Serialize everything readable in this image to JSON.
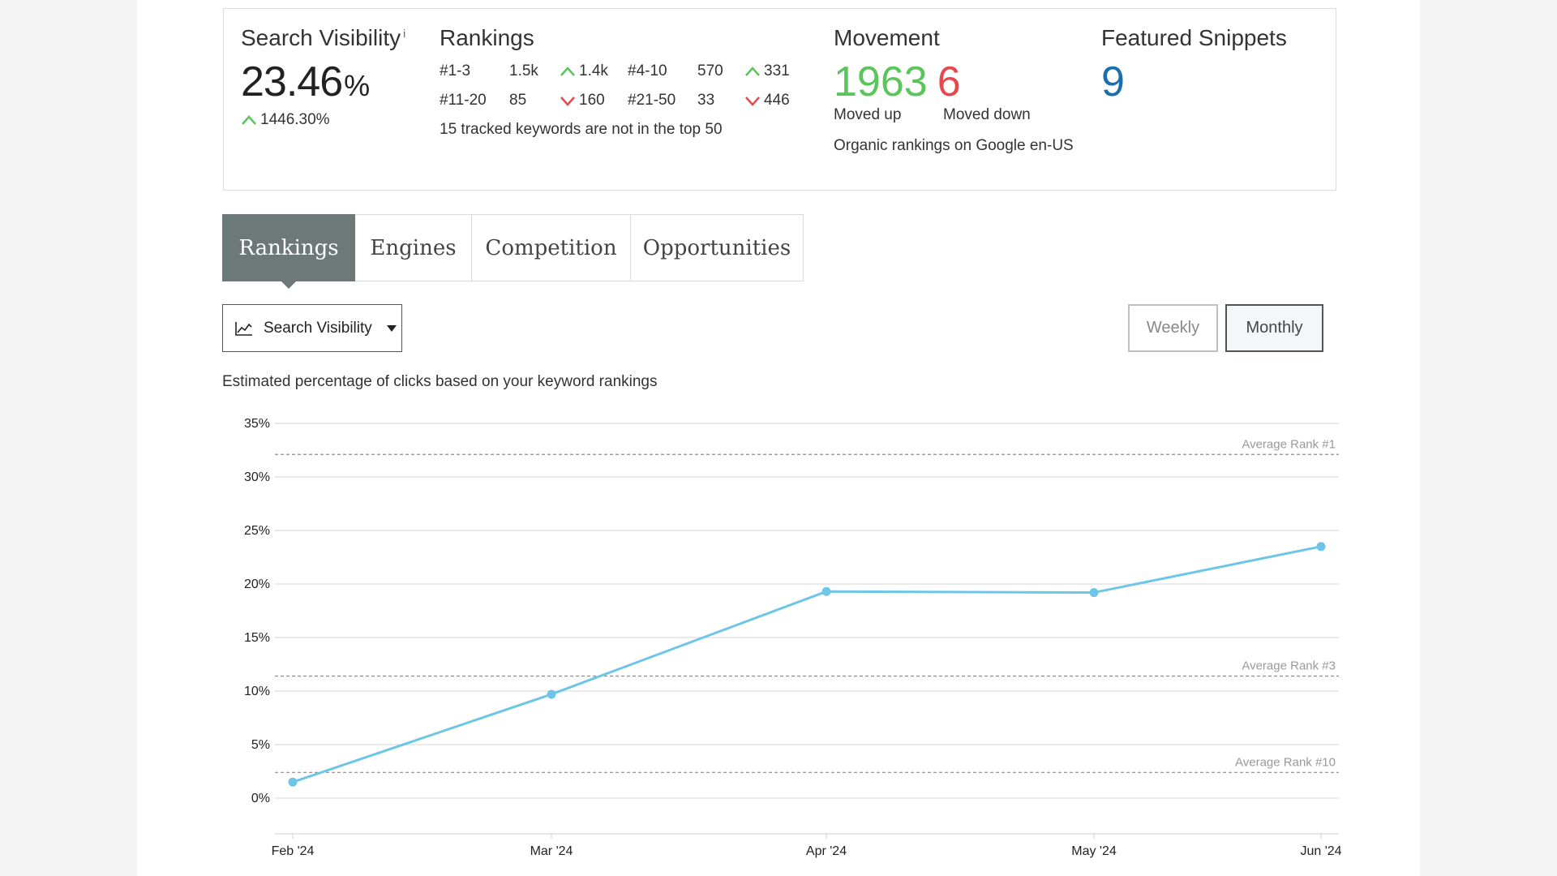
{
  "summary": {
    "search_visibility": {
      "title": "Search Visibility",
      "info_symbol": "i",
      "value": "23.46",
      "unit": "%",
      "change": "1446.30%"
    },
    "rankings": {
      "title": "Rankings",
      "rows": [
        [
          {
            "label": "#1-3",
            "count": "1.5k",
            "change": "1.4k",
            "direction": "up"
          },
          {
            "label": "#4-10",
            "count": "570",
            "change": "331",
            "direction": "up"
          }
        ],
        [
          {
            "label": "#11-20",
            "count": "85",
            "change": "160",
            "direction": "down"
          },
          {
            "label": "#21-50",
            "count": "33",
            "change": "446",
            "direction": "down"
          }
        ]
      ],
      "note": "15 tracked keywords are not in the top 50"
    },
    "movement": {
      "title": "Movement",
      "up_value": "1963",
      "down_value": "6",
      "up_label": "Moved up",
      "down_label": "Moved down",
      "description": "Organic rankings on Google en-US"
    },
    "featured_snippets": {
      "title": "Featured Snippets",
      "value": "9"
    }
  },
  "tabs": [
    {
      "label": "Rankings",
      "active": true
    },
    {
      "label": "Engines",
      "active": false
    },
    {
      "label": "Competition",
      "active": false
    },
    {
      "label": "Opportunities",
      "active": false
    }
  ],
  "metric_select": {
    "icon": "line-chart-icon",
    "label": "Search Visibility"
  },
  "period": {
    "weekly_label": "Weekly",
    "monthly_label": "Monthly",
    "selected": "Monthly"
  },
  "chart_description": "Estimated percentage of clicks based on your keyword rankings",
  "colors": {
    "line": "#6ec6e6",
    "up": "#5ac55a",
    "down": "#e5484d",
    "snippet": "#1a6fae",
    "active_tab": "#6d7878"
  },
  "chart_data": {
    "type": "line",
    "categories": [
      "Feb '24",
      "Mar '24",
      "Apr '24",
      "May '24",
      "Jun '24"
    ],
    "series": [
      {
        "values": [
          1.5,
          9.7,
          19.3,
          19.2,
          23.5
        ]
      }
    ],
    "ylim": [
      0,
      35
    ],
    "yticks": [
      0,
      5,
      10,
      15,
      20,
      25,
      30,
      35
    ],
    "ytick_suffix": "%",
    "reference_lines": [
      {
        "label": "Average Rank #1",
        "value": 32.1
      },
      {
        "label": "Average Rank #3",
        "value": 11.4
      },
      {
        "label": "Average Rank #10",
        "value": 2.4
      }
    ],
    "grid": true
  }
}
